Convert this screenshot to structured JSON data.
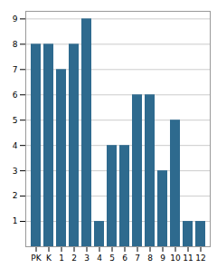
{
  "chart_data": {
    "type": "bar",
    "categories": [
      "PK",
      "K",
      "1",
      "2",
      "3",
      "4",
      "5",
      "6",
      "7",
      "8",
      "9",
      "10",
      "11",
      "12"
    ],
    "values": [
      8,
      8,
      7,
      8,
      9,
      1,
      4,
      4,
      6,
      6,
      3,
      5,
      1,
      1
    ],
    "color": "#2E6A8E",
    "ylim": [
      0,
      9.3
    ],
    "yticks": [
      1,
      2,
      3,
      4,
      5,
      6,
      7,
      8,
      9
    ],
    "grid": true
  }
}
